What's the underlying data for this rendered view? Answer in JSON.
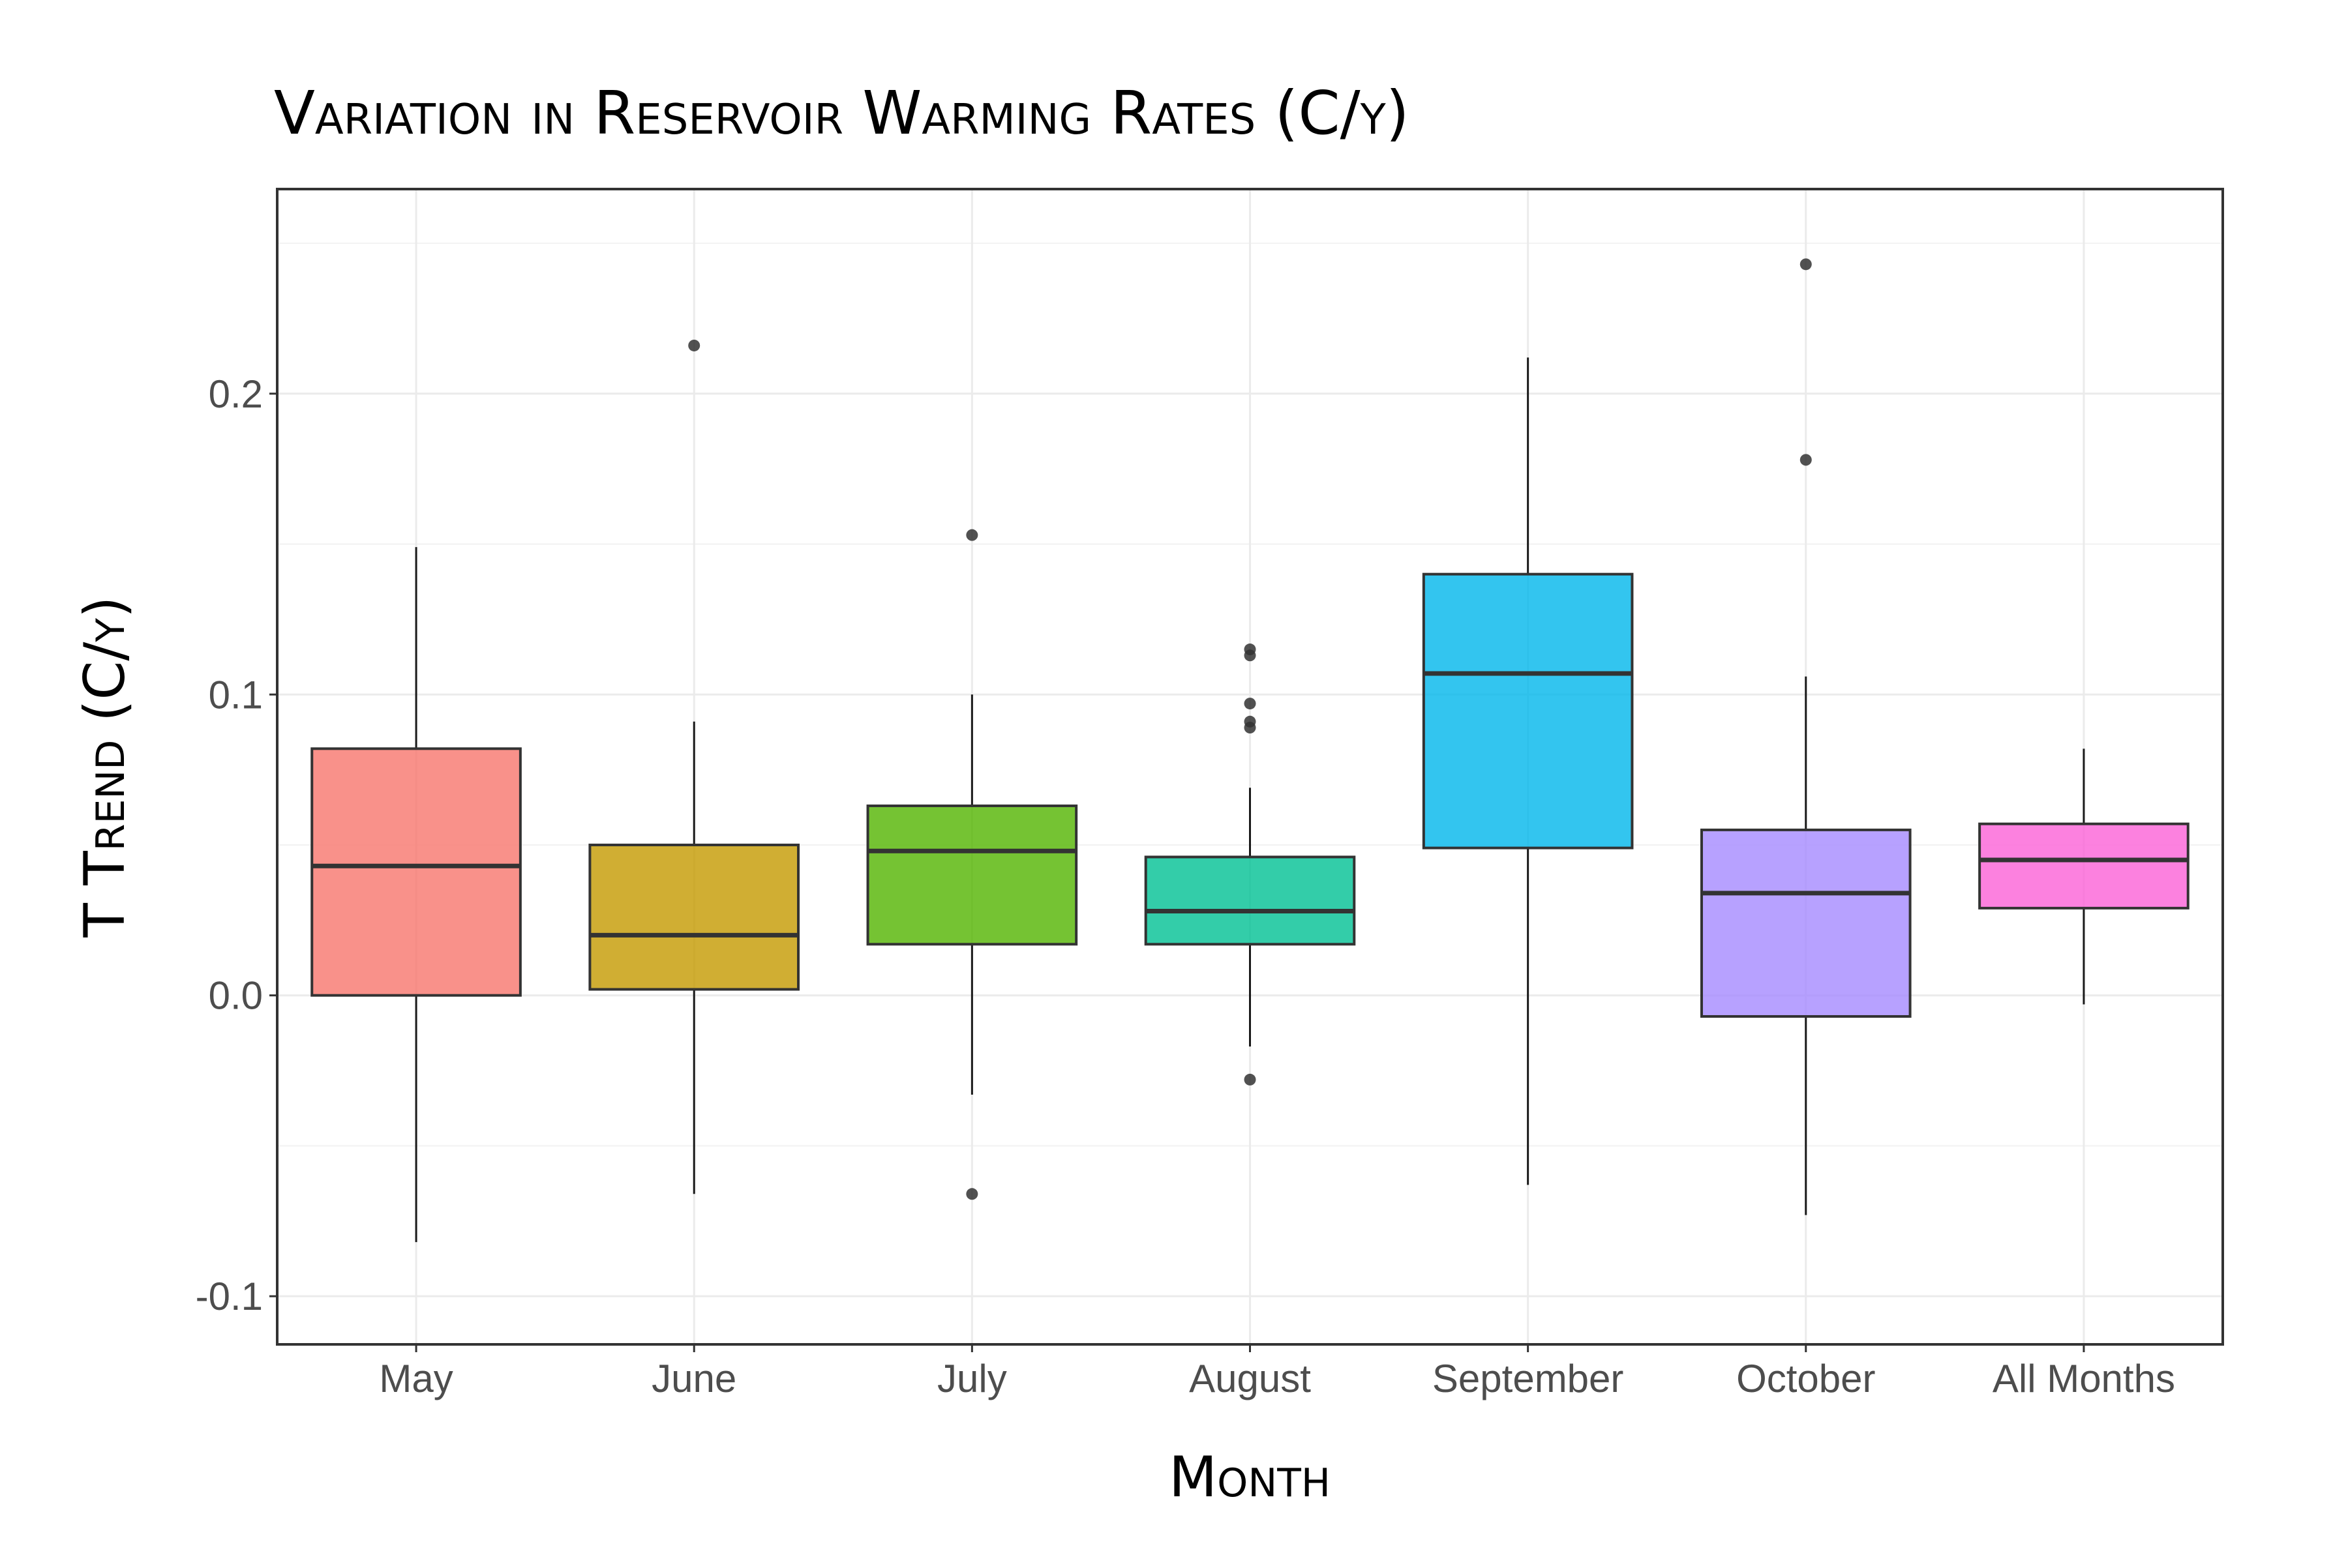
{
  "chart_data": {
    "type": "box",
    "title": "Variation in Reservoir Warming Rates (C/y)",
    "xlabel": "Month",
    "ylabel": "T Trend (C/y)",
    "ylim": [
      -0.116,
      0.268
    ],
    "y_ticks": [
      -0.1,
      0.0,
      0.1,
      0.2
    ],
    "y_tick_labels": [
      "-0.1",
      "0.0",
      "0.1",
      "0.2"
    ],
    "grid": true,
    "legend": "none",
    "categories": [
      "May",
      "June",
      "July",
      "August",
      "September",
      "October",
      "All Months"
    ],
    "boxes": [
      {
        "category": "May",
        "whisker_low": -0.082,
        "q1": 0.0,
        "median": 0.043,
        "q3": 0.082,
        "whisker_high": 0.149,
        "outliers": [],
        "color": "#F8766D"
      },
      {
        "category": "June",
        "whisker_low": -0.066,
        "q1": 0.002,
        "median": 0.02,
        "q3": 0.05,
        "whisker_high": 0.091,
        "outliers": [
          0.216
        ],
        "color": "#C49A00"
      },
      {
        "category": "July",
        "whisker_low": -0.033,
        "q1": 0.017,
        "median": 0.048,
        "q3": 0.063,
        "whisker_high": 0.1,
        "outliers": [
          0.153,
          -0.066
        ],
        "color": "#53B400"
      },
      {
        "category": "August",
        "whisker_low": -0.017,
        "q1": 0.017,
        "median": 0.028,
        "q3": 0.046,
        "whisker_high": 0.069,
        "outliers": [
          0.115,
          0.113,
          0.097,
          0.091,
          0.089,
          -0.028
        ],
        "color": "#00C094"
      },
      {
        "category": "September",
        "whisker_low": -0.063,
        "q1": 0.049,
        "median": 0.107,
        "q3": 0.14,
        "whisker_high": 0.212,
        "outliers": [],
        "color": "#00B6EB"
      },
      {
        "category": "October",
        "whisker_low": -0.073,
        "q1": -0.007,
        "median": 0.034,
        "q3": 0.055,
        "whisker_high": 0.106,
        "outliers": [
          0.243,
          0.178
        ],
        "color": "#A58AFF"
      },
      {
        "category": "All Months",
        "whisker_low": -0.003,
        "q1": 0.029,
        "median": 0.045,
        "q3": 0.057,
        "whisker_high": 0.082,
        "outliers": [],
        "color": "#FB61D7"
      }
    ]
  }
}
